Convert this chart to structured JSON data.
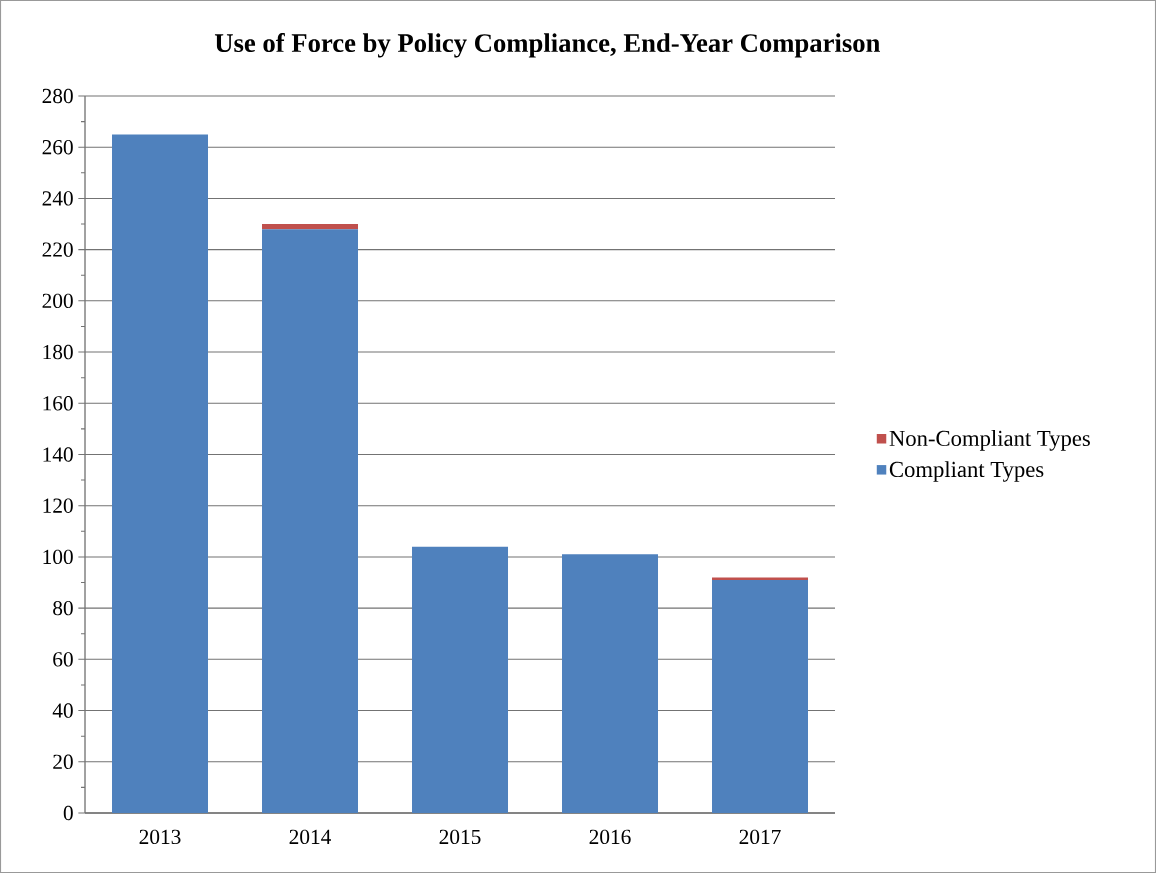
{
  "chart_data": {
    "type": "bar",
    "title": "Use of Force by Policy Compliance, End-Year Comparison",
    "categories": [
      "2013",
      "2014",
      "2015",
      "2016",
      "2017"
    ],
    "series": [
      {
        "name": "Compliant Types",
        "color": "#4f81bd",
        "values": [
          265,
          228,
          104,
          101,
          91
        ]
      },
      {
        "name": "Non-Compliant Types",
        "color": "#c0504d",
        "values": [
          0,
          2,
          0,
          0,
          1
        ]
      }
    ],
    "stacked": true,
    "ylim": [
      0,
      280
    ],
    "yticks": [
      0,
      20,
      40,
      60,
      80,
      100,
      120,
      140,
      160,
      180,
      200,
      220,
      240,
      260,
      280
    ],
    "grid": "y",
    "legend": "right"
  }
}
